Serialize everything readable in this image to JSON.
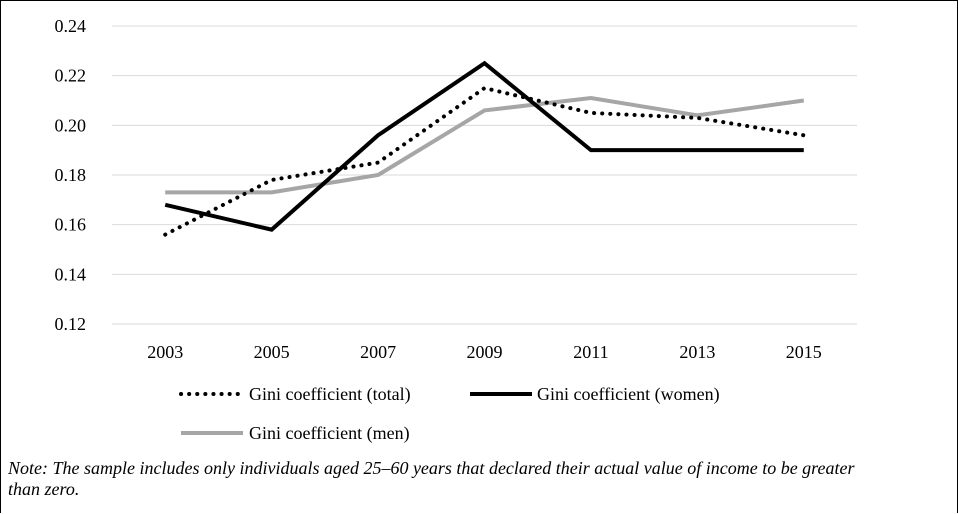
{
  "chart_data": {
    "type": "line",
    "x": [
      "2003",
      "2005",
      "2007",
      "2009",
      "2011",
      "2013",
      "2015"
    ],
    "series": [
      {
        "name": "Gini coefficient (total)",
        "values": [
          0.156,
          0.178,
          0.185,
          0.215,
          0.205,
          0.203,
          0.196
        ],
        "color": "#000000",
        "style": "dotted"
      },
      {
        "name": "Gini coefficient (women)",
        "values": [
          0.168,
          0.158,
          0.196,
          0.225,
          0.19,
          0.19,
          0.19
        ],
        "color": "#000000",
        "style": "solid"
      },
      {
        "name": "Gini coefficient (men)",
        "values": [
          0.173,
          0.173,
          0.18,
          0.206,
          0.211,
          0.204,
          0.21
        ],
        "color": "#a6a6a6",
        "style": "solid"
      }
    ],
    "ylim": [
      0.12,
      0.24
    ],
    "yticks": [
      "0.12",
      "0.14",
      "0.16",
      "0.18",
      "0.20",
      "0.22",
      "0.24"
    ],
    "grid": true,
    "legend_position": "bottom"
  },
  "note": "Note: The sample includes only individuals aged 25–60 years that declared their actual value of income to be greater than zero."
}
